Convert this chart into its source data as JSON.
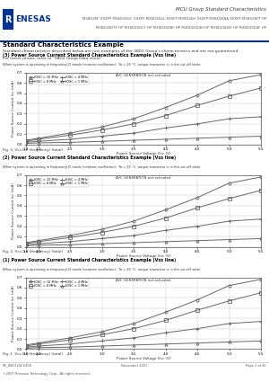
{
  "doc_title": "MCU Group Standard Characteristics",
  "doc_models1": "M38D26F XXXFP M38D26GC XXXFP M38D26GL XXXFP M38D26H XXXFP M38D26NA XXXFP M38D26PT HP",
  "doc_models2": "M38D26DTF HP M38D26DCY HP M38D26D8F HP M38D26D4H HP M38D26D4F HP M38D26D4F HP",
  "section_title": "Standard Characteristics Example",
  "section_desc": "Standard characteristics described below are just examples of the 38D2 Group's characteristics and are not guaranteed.",
  "section_desc2": "For rated values, refer to \"38D2 Group Data sheet\".",
  "charts": [
    {
      "title": "(1) Power Source Current Standard Characteristics Example (Vss line)",
      "condition": "When system is operating in frequency(2) mode (ceramic oscillation),  Ta = 25 °C, output transistor is in the cut-off state",
      "subcondition": "AVC GENERATION not activated",
      "xlabel": "Power Source Voltage Vcc (V)",
      "ylabel": "Power Source Current Icc (mA)",
      "figcap": "Fig. 1. Vcc-Icc (frequency) (total)",
      "xrange": [
        1.8,
        5.5
      ],
      "yrange": [
        0.0,
        0.7
      ],
      "xticks": [
        1.8,
        2.0,
        2.5,
        3.0,
        3.5,
        4.0,
        4.5,
        5.0,
        5.5
      ],
      "yticks": [
        0.0,
        0.1,
        0.2,
        0.3,
        0.4,
        0.5,
        0.6,
        0.7
      ],
      "series": [
        {
          "x": [
            1.8,
            2.0,
            2.5,
            3.0,
            3.5,
            4.0,
            4.5,
            5.0,
            5.5
          ],
          "y": [
            0.04,
            0.06,
            0.11,
            0.17,
            0.25,
            0.36,
            0.48,
            0.62,
            0.68
          ],
          "marker": "o",
          "label": "fOSC = 10 MHz"
        },
        {
          "x": [
            1.8,
            2.0,
            2.5,
            3.0,
            3.5,
            4.0,
            4.5,
            5.0,
            5.5
          ],
          "y": [
            0.03,
            0.05,
            0.09,
            0.14,
            0.2,
            0.28,
            0.38,
            0.47,
            0.55
          ],
          "marker": "s",
          "label": "fOSC = 8 MHz"
        },
        {
          "x": [
            1.8,
            2.0,
            2.5,
            3.0,
            3.5,
            4.0,
            4.5,
            5.0,
            5.5
          ],
          "y": [
            0.02,
            0.03,
            0.05,
            0.08,
            0.11,
            0.16,
            0.2,
            0.25,
            0.27
          ],
          "marker": "+",
          "label": "fOSC = 4 MHz"
        },
        {
          "x": [
            1.8,
            2.0,
            2.5,
            3.0,
            3.5,
            4.0,
            4.5,
            5.0,
            5.5
          ],
          "y": [
            0.01,
            0.015,
            0.02,
            0.03,
            0.04,
            0.05,
            0.06,
            0.07,
            0.08
          ],
          "marker": "^",
          "label": "fOSC = 1 MHz"
        }
      ]
    },
    {
      "title": "(2) Power Source Current Standard Characteristics Example (Vss line)",
      "condition": "When system is operating in frequency(2) mode (ceramic oscillation),  Ta = 25 °C, output transistor is in the cut-off state",
      "subcondition": "AVC GENERATION not activated",
      "xlabel": "Power Source Voltage Vcc (V)",
      "ylabel": "Power Source Current Icc (mA)",
      "figcap": "Fig. 2. Vcc-Icc (frequency) (total)",
      "xrange": [
        1.8,
        5.5
      ],
      "yrange": [
        0.0,
        0.7
      ],
      "xticks": [
        1.8,
        2.0,
        2.5,
        3.0,
        3.5,
        4.0,
        4.5,
        5.0,
        5.5
      ],
      "yticks": [
        0.0,
        0.1,
        0.2,
        0.3,
        0.4,
        0.5,
        0.6,
        0.7
      ],
      "series": [
        {
          "x": [
            1.8,
            2.0,
            2.5,
            3.0,
            3.5,
            4.0,
            4.5,
            5.0,
            5.5
          ],
          "y": [
            0.04,
            0.06,
            0.11,
            0.17,
            0.25,
            0.36,
            0.48,
            0.62,
            0.68
          ],
          "marker": "o",
          "label": "fOSC = 10 MHz"
        },
        {
          "x": [
            1.8,
            2.0,
            2.5,
            3.0,
            3.5,
            4.0,
            4.5,
            5.0,
            5.5
          ],
          "y": [
            0.03,
            0.05,
            0.09,
            0.14,
            0.2,
            0.28,
            0.38,
            0.47,
            0.55
          ],
          "marker": "s",
          "label": "fOSC = 8 MHz"
        },
        {
          "x": [
            1.8,
            2.0,
            2.5,
            3.0,
            3.5,
            4.0,
            4.5,
            5.0,
            5.5
          ],
          "y": [
            0.02,
            0.03,
            0.05,
            0.08,
            0.11,
            0.16,
            0.2,
            0.25,
            0.27
          ],
          "marker": "+",
          "label": "fOSC = 4 MHz"
        },
        {
          "x": [
            1.8,
            2.0,
            2.5,
            3.0,
            3.5,
            4.0,
            4.5,
            5.0,
            5.5
          ],
          "y": [
            0.01,
            0.015,
            0.02,
            0.03,
            0.04,
            0.05,
            0.06,
            0.07,
            0.08
          ],
          "marker": "^",
          "label": "fOSC = 1 MHz"
        }
      ]
    },
    {
      "title": "(3) Power Source Current Standard Characteristics Example (Vss line)",
      "condition": "When system is operating in frequency(2) mode (ceramic oscillation),  Ta = 25 °C, output transistor is in the cut-off state",
      "subcondition": "AVC GENERATION not activated",
      "xlabel": "Power Source Voltage Vcc (V)",
      "ylabel": "Power Source Current Icc (mA)",
      "figcap": "Fig. 3. Vcc-Icc (frequency) (total)",
      "xrange": [
        1.8,
        5.5
      ],
      "yrange": [
        0.0,
        0.7
      ],
      "xticks": [
        1.8,
        2.0,
        2.5,
        3.0,
        3.5,
        4.0,
        4.5,
        5.0,
        5.5
      ],
      "yticks": [
        0.0,
        0.1,
        0.2,
        0.3,
        0.4,
        0.5,
        0.6,
        0.7
      ],
      "series": [
        {
          "x": [
            1.8,
            2.0,
            2.5,
            3.0,
            3.5,
            4.0,
            4.5,
            5.0,
            5.5
          ],
          "y": [
            0.04,
            0.06,
            0.11,
            0.17,
            0.25,
            0.36,
            0.48,
            0.62,
            0.68
          ],
          "marker": "o",
          "label": "fOSC = 10 MHz"
        },
        {
          "x": [
            1.8,
            2.0,
            2.5,
            3.0,
            3.5,
            4.0,
            4.5,
            5.0,
            5.5
          ],
          "y": [
            0.03,
            0.05,
            0.09,
            0.14,
            0.2,
            0.28,
            0.38,
            0.47,
            0.55
          ],
          "marker": "s",
          "label": "fOSC = 8 MHz"
        },
        {
          "x": [
            1.8,
            2.0,
            2.5,
            3.0,
            3.5,
            4.0,
            4.5,
            5.0,
            5.5
          ],
          "y": [
            0.02,
            0.03,
            0.05,
            0.08,
            0.11,
            0.16,
            0.2,
            0.25,
            0.27
          ],
          "marker": "+",
          "label": "fOSC = 4 MHz"
        },
        {
          "x": [
            1.8,
            2.0,
            2.5,
            3.0,
            3.5,
            4.0,
            4.5,
            5.0,
            5.5
          ],
          "y": [
            0.01,
            0.015,
            0.02,
            0.03,
            0.04,
            0.05,
            0.06,
            0.07,
            0.08
          ],
          "marker": "^",
          "label": "fOSC = 1 MHz"
        }
      ]
    }
  ],
  "footer_left1": "RE_J08Y11W-0300",
  "footer_left2": "©2007 Renesas Technology Corp., All rights reserved.",
  "footer_center": "November 2007",
  "footer_right": "Page 1 of 26",
  "series_color": "#666666",
  "grid_color": "#cccccc",
  "header_line_color": "#003399",
  "bg_color": "#ffffff"
}
